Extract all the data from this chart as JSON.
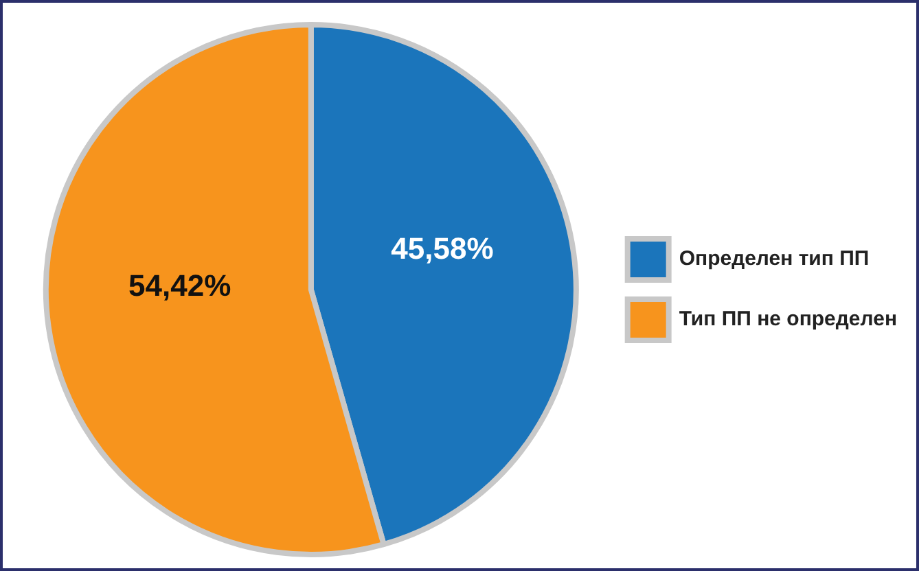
{
  "chart_data": {
    "type": "pie",
    "categories": [
      "Определен тип ПП",
      "Тип ПП не определен"
    ],
    "values": [
      45.58,
      54.42
    ],
    "colors": [
      "#1b75bb",
      "#f7941d"
    ],
    "value_labels": [
      "45,58%",
      "54,42%"
    ],
    "legend": "right"
  }
}
